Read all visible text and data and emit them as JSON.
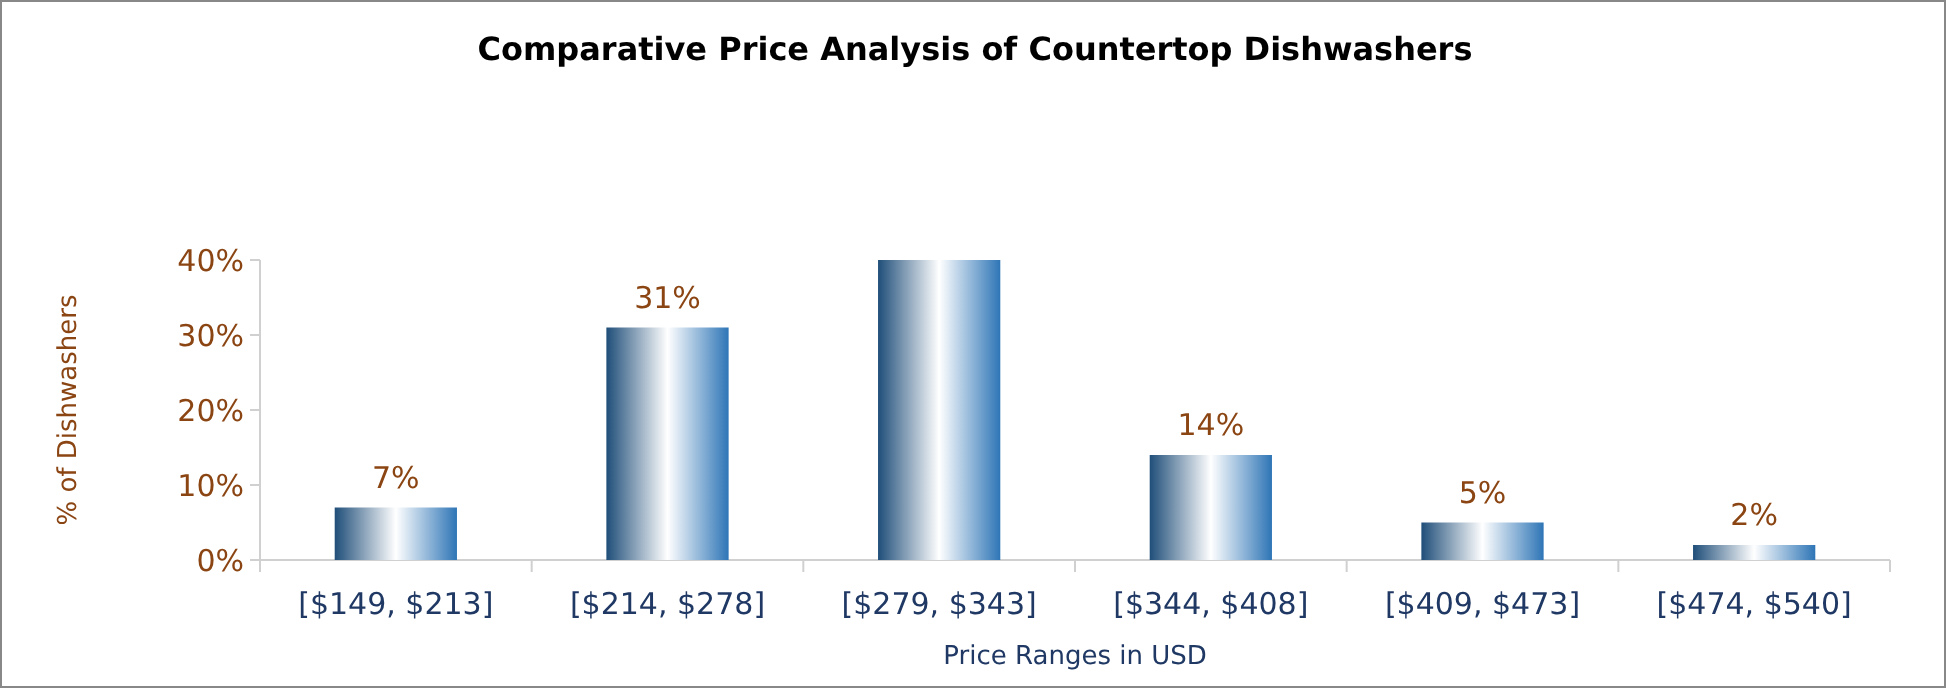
{
  "chart_data": {
    "type": "bar",
    "title": "Comparative Price Analysis of Countertop Dishwashers",
    "xlabel": "Price Ranges in USD",
    "ylabel": "% of Dishwashers",
    "categories": [
      "[$149, $213]",
      "[$214, $278]",
      "[$279, $343]",
      "[$344, $408]",
      "[$409, $473]",
      "[$474, $540]"
    ],
    "values": [
      7,
      31,
      40,
      14,
      5,
      2
    ],
    "value_labels": [
      "7%",
      "31%",
      null,
      "14%",
      "5%",
      "2%"
    ],
    "color": "#2e75b6",
    "ylim": [
      0,
      40
    ],
    "yticks": [
      {
        "value": 0,
        "label": "0%"
      },
      {
        "value": 10,
        "label": "10%"
      },
      {
        "value": 20,
        "label": "20%"
      },
      {
        "value": 30,
        "label": "30%"
      },
      {
        "value": 40,
        "label": "40%"
      }
    ],
    "grid": false
  }
}
